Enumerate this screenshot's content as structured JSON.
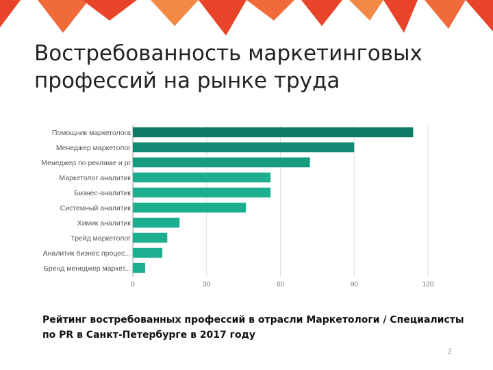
{
  "slide": {
    "title_line1": "Востребованность маркетинговых",
    "title_line2": "профессий на рынке труда",
    "caption_line1": "Рейтинг востребованных профессий в отрасли Маркетологи / Специалисты",
    "caption_line2": "по PR в Санкт-Петербурге в 2017 году",
    "page_number": "2",
    "decor_color": "#E8442A"
  },
  "chart_data": {
    "type": "bar",
    "orientation": "horizontal",
    "categories": [
      "Помощник маркетолога",
      "Менеджер маркетолог",
      "Менеджер по рекламе и pr",
      "Маркетолог аналитик",
      "Бизнес-аналитик",
      "Системный аналитик",
      "Химик аналитик",
      "Трейд маркетолог",
      "Аналитик бизнес процес...",
      "Бренд менеджер маркет..."
    ],
    "values": [
      114,
      90,
      72,
      56,
      56,
      46,
      19,
      14,
      12,
      5
    ],
    "colors": [
      "#0E7A66",
      "#128A73",
      "#169A80",
      "#1CAE8F",
      "#1CAE8F",
      "#1CAE8F",
      "#1CAE8F",
      "#1CAE8F",
      "#1CAE8F",
      "#1CAE8F"
    ],
    "xlim": [
      0,
      120
    ],
    "xticks": [
      0,
      30,
      60,
      90,
      120
    ],
    "grid": true,
    "legend": "none"
  }
}
